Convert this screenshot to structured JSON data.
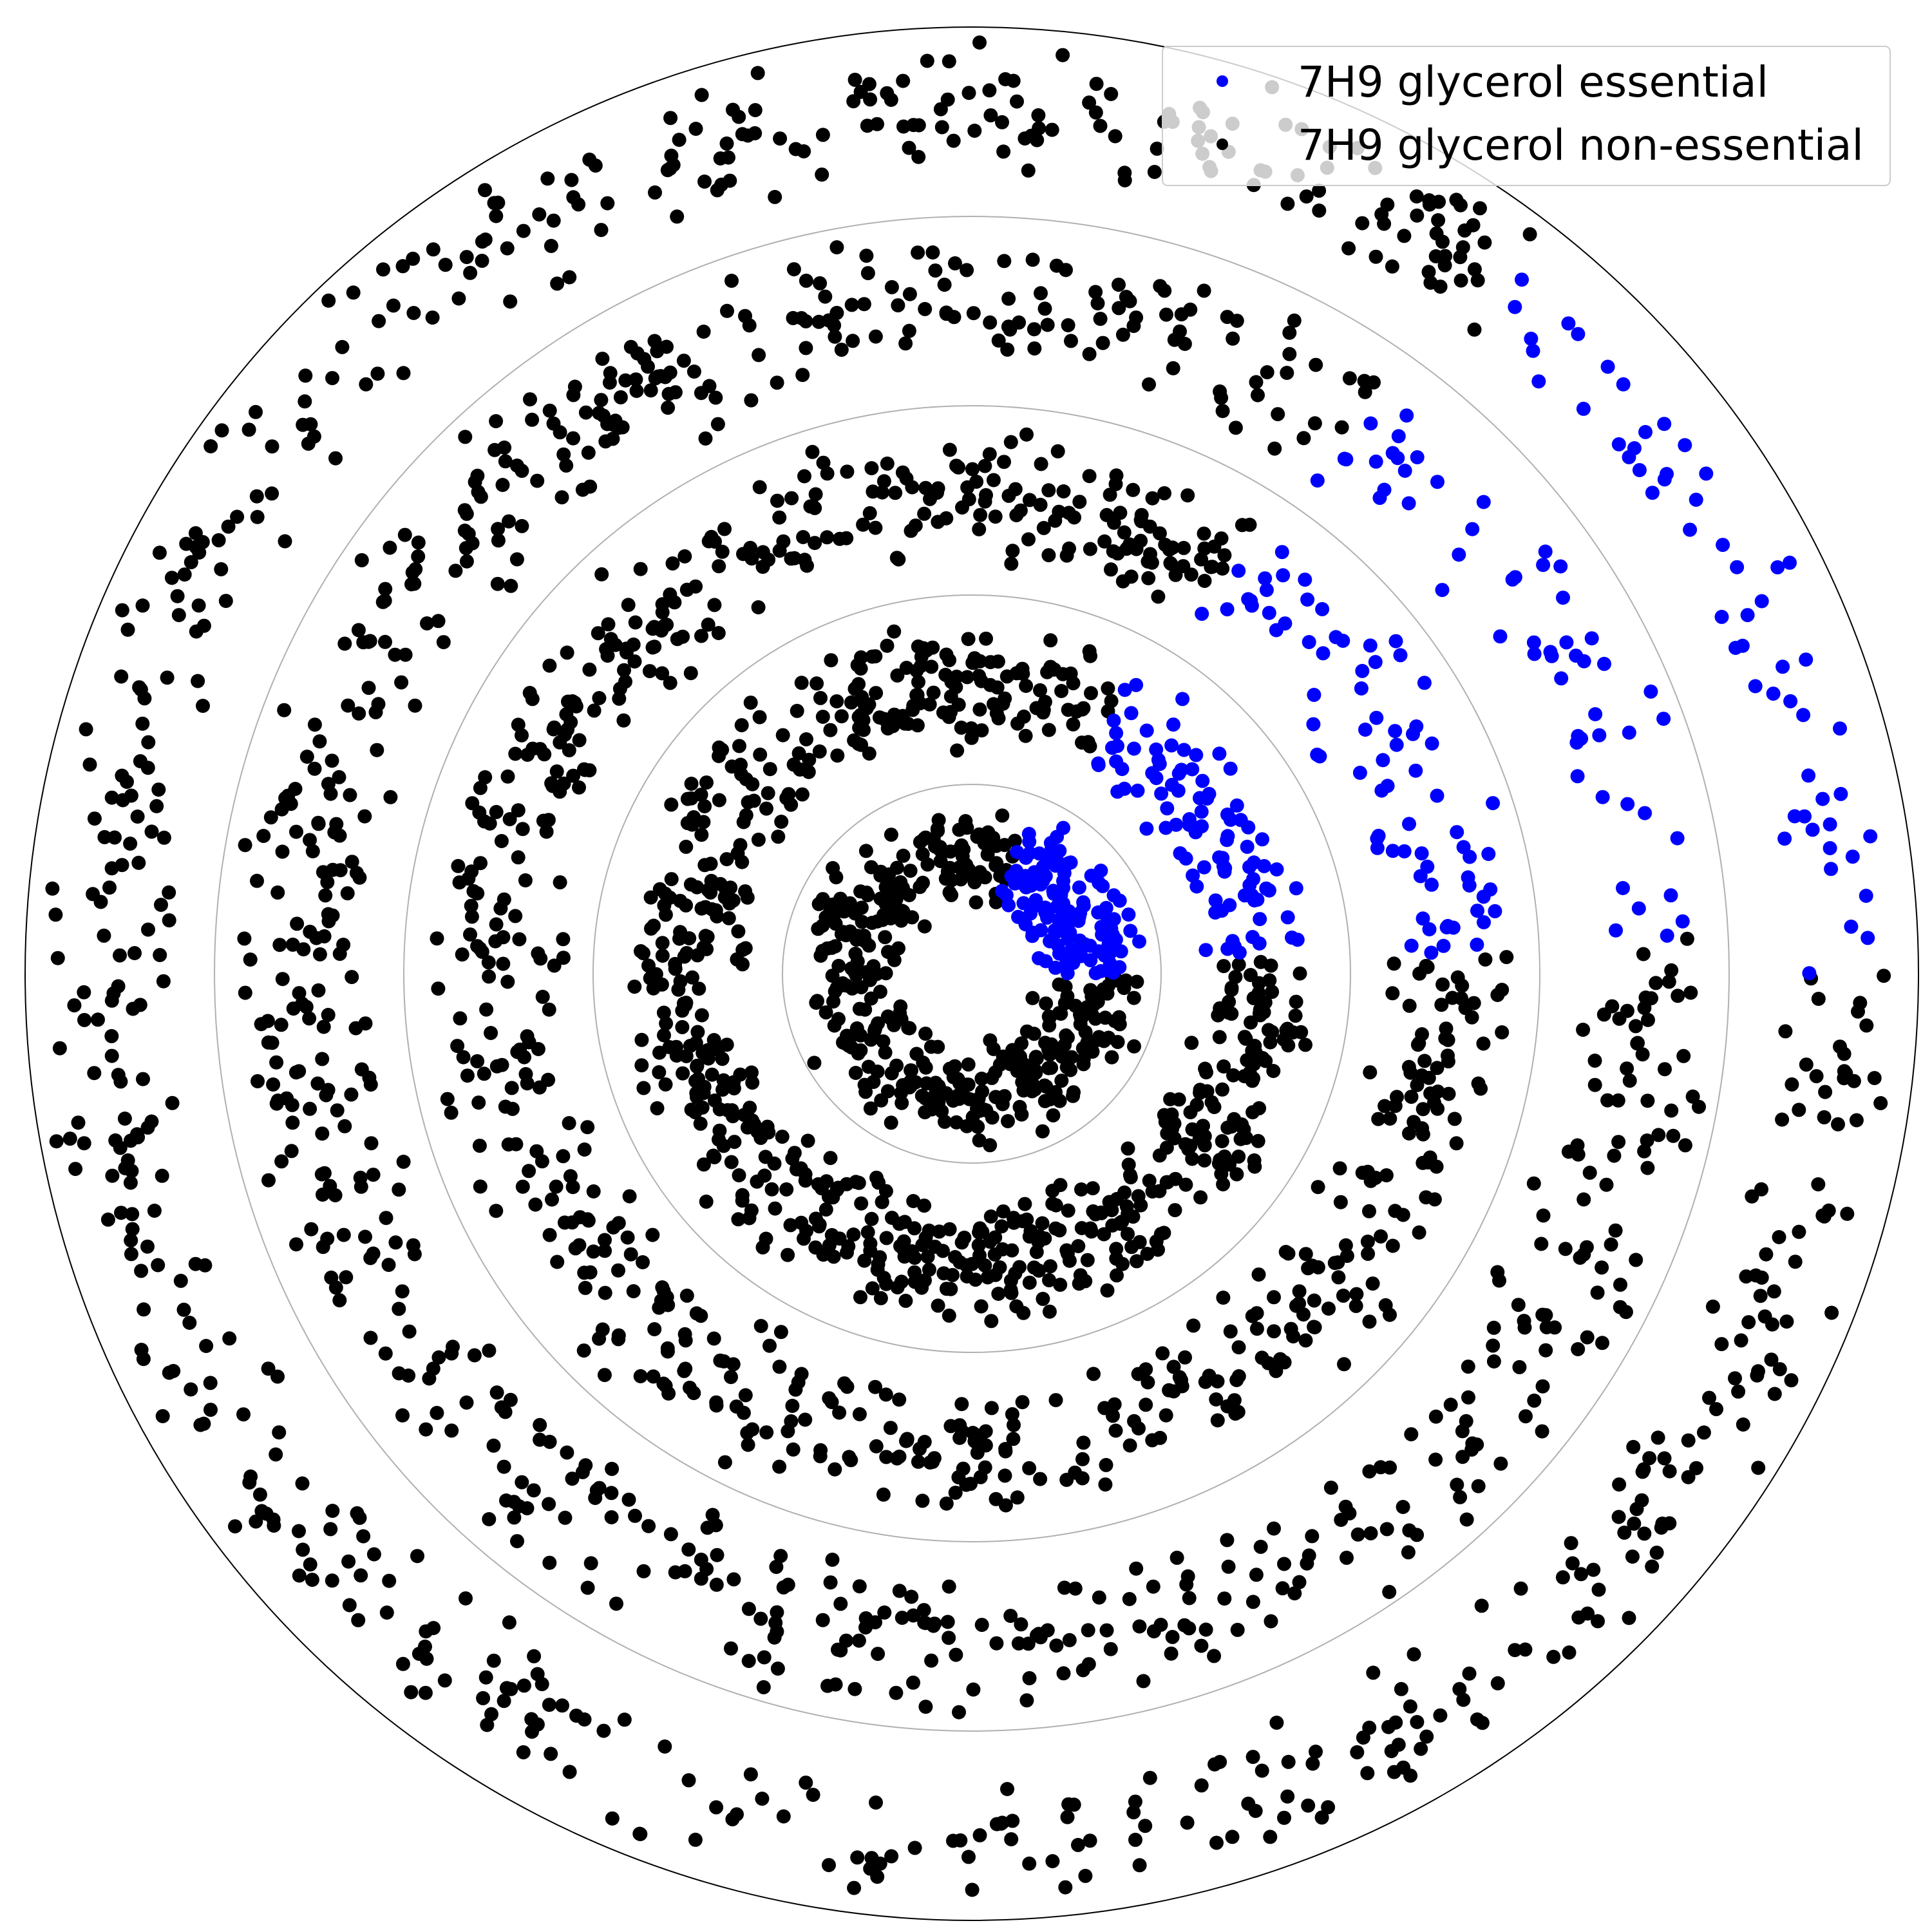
{
  "chart_data": {
    "type": "scatter",
    "projection": "polar",
    "title": "",
    "xlabel": "",
    "ylabel": "",
    "grid": true,
    "legend_position": "top-right",
    "rlim": [
      0,
      5
    ],
    "theta_units": "degrees",
    "rings": [
      {
        "r_center": 0.65,
        "r_spread": 0.32,
        "point_count": 520,
        "essential_sector_deg": [
          0,
          70
        ],
        "essential_count": 140
      },
      {
        "r_center": 1.52,
        "r_spread": 0.36,
        "point_count": 760,
        "essential_sector_deg": [
          3,
          62
        ],
        "essential_count": 95
      },
      {
        "r_center": 2.52,
        "r_spread": 0.4,
        "point_count": 720,
        "essential_sector_deg": [
          2,
          58
        ],
        "essential_count": 75
      },
      {
        "r_center": 3.55,
        "r_spread": 0.42,
        "point_count": 700,
        "essential_sector_deg": [
          3,
          55
        ],
        "essential_count": 55
      },
      {
        "r_center": 4.58,
        "r_spread": 0.38,
        "point_count": 650,
        "essential_sector_deg": [
          0,
          52
        ],
        "essential_count": 55
      }
    ],
    "grid_circles_r": [
      1,
      2,
      3,
      4,
      5
    ],
    "series": [
      {
        "name": "7H9 glycerol essential",
        "color": "#0000ff"
      },
      {
        "name": "7H9 glycerol non-essential",
        "color": "#000000"
      }
    ]
  }
}
